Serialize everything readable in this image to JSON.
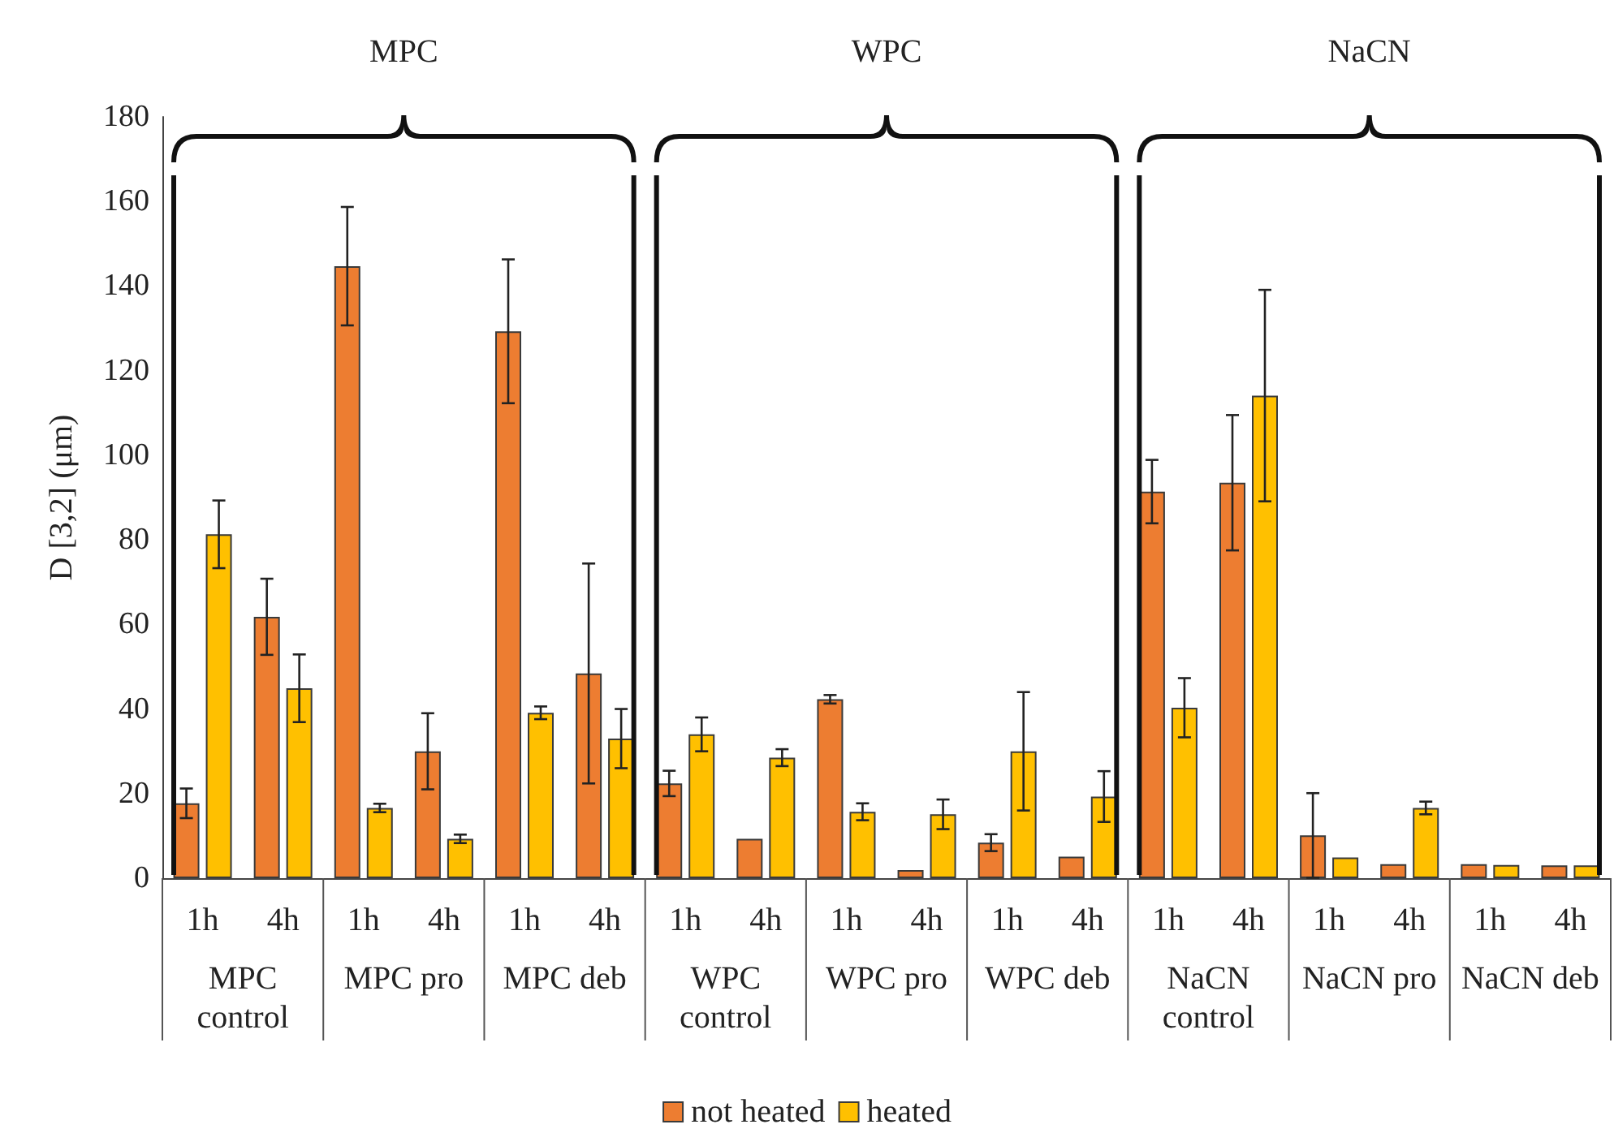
{
  "chart_data": {
    "type": "bar",
    "ylabel": "D [3,2] (μm)",
    "categories": [
      "1h",
      "4h",
      "1h",
      "4h",
      "1h",
      "4h",
      "1h",
      "4h",
      "1h",
      "4h",
      "1h",
      "4h",
      "1h",
      "4h",
      "1h",
      "4h",
      "1h",
      "4h"
    ],
    "series": [
      {
        "name": "not heated",
        "color": "#ed7d31",
        "values": [
          17.7,
          61.8,
          144.7,
          30,
          129.3,
          48.4,
          22.4,
          9.3,
          42.3,
          1.9,
          8.4,
          5.1,
          91.4,
          93.5,
          10.1,
          3.3,
          3.3,
          3
        ],
        "errors": [
          3.5,
          9,
          14,
          9,
          17,
          26,
          3,
          null,
          1,
          null,
          2,
          null,
          7.5,
          16,
          10,
          null,
          null,
          null
        ]
      },
      {
        "name": "heated",
        "color": "#ffc000",
        "values": [
          81.3,
          44.9,
          16.6,
          9.3,
          39.1,
          33,
          34,
          28.5,
          15.7,
          15.1,
          30,
          19.3,
          40.3,
          114.1,
          4.9,
          16.6,
          3.1,
          3
        ],
        "errors": [
          8,
          8,
          1,
          1,
          1.5,
          7,
          4,
          2,
          2,
          3.5,
          14,
          6,
          7,
          25,
          null,
          1.5,
          null,
          null
        ]
      }
    ],
    "annotations": [
      "MPC control",
      "MPC pro",
      "MPC deb",
      "WPC control",
      "WPC pro",
      "WPC deb",
      "NaCN control",
      "NaCN pro",
      "NaCN deb",
      "MPC",
      "WPC",
      "NaCN"
    ],
    "ylim": [
      0,
      180
    ],
    "yticks": [
      0,
      20,
      40,
      60,
      80,
      100,
      120,
      140,
      160,
      180
    ],
    "grid": false,
    "legend": "bottom"
  }
}
